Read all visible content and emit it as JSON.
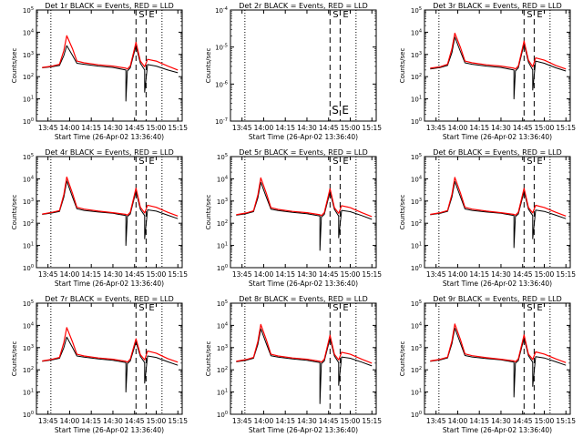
{
  "chart_data": [
    {
      "type": "line",
      "title": "Det 1r BLACK = Events, RED = LLD",
      "ylabel": "Counts/sec",
      "xlabel": "Start Time (26-Apr-02 13:36:40)",
      "x_ticks": [
        "13:45",
        "14:00",
        "14:15",
        "14:30",
        "14:45",
        "15:00",
        "15:15"
      ],
      "y_scale": "log",
      "ylim": [
        1,
        100000
      ],
      "y_ticks": [
        "10^0",
        "10^1",
        "10^2",
        "10^3",
        "10^4",
        "10^5"
      ],
      "markers": {
        "S": "14:46",
        "E": "14:53"
      },
      "series": [
        {
          "color": "#000000",
          "x": [
            "13:41",
            "13:48",
            "13:53",
            "13:56",
            "13:58",
            "14:02",
            "14:05",
            "14:10",
            "14:20",
            "14:30",
            "14:39",
            "14:39",
            "14:40",
            "14:42",
            "14:46",
            "14:49",
            "14:52",
            "14:52",
            "14:54",
            "15:00",
            "15:08",
            "15:15"
          ],
          "y": [
            250,
            280,
            320,
            900,
            2500,
            900,
            400,
            360,
            300,
            260,
            200,
            8,
            180,
            250,
            2500,
            400,
            200,
            20,
            350,
            300,
            200,
            150
          ]
        },
        {
          "color": "#ff0000",
          "x": [
            "13:41",
            "13:48",
            "13:53",
            "13:56",
            "13:58",
            "14:02",
            "14:05",
            "14:10",
            "14:20",
            "14:30",
            "14:39",
            "14:40",
            "14:42",
            "14:46",
            "14:49",
            "14:52",
            "14:54",
            "15:00",
            "15:08",
            "15:15"
          ],
          "y": [
            260,
            300,
            360,
            1500,
            7000,
            1800,
            500,
            420,
            340,
            300,
            240,
            220,
            300,
            3500,
            500,
            280,
            600,
            500,
            300,
            200
          ]
        }
      ]
    },
    {
      "type": "line",
      "title": "Det 2r BLACK = Events, RED = LLD",
      "ylabel": "Counts/sec",
      "xlabel": "Start Time (26-Apr-02 13:36:40)",
      "x_ticks": [
        "13:45",
        "14:00",
        "14:15",
        "14:30",
        "14:45",
        "15:00",
        "15:15"
      ],
      "y_scale": "log",
      "ylim": [
        1e-07,
        0.0001
      ],
      "y_ticks": [
        "10^-7",
        "10^-6",
        "10^-5",
        "10^-4"
      ],
      "markers": {
        "S": "14:46",
        "E": "14:53"
      },
      "series": []
    },
    {
      "type": "line",
      "title": "Det 3r BLACK = Events, RED = LLD",
      "ylabel": "Counts/sec",
      "xlabel": "Start Time (26-Apr-02 13:36:40)",
      "x_ticks": [
        "13:45",
        "14:00",
        "14:15",
        "14:30",
        "14:45",
        "15:00",
        "15:15"
      ],
      "y_scale": "log",
      "ylim": [
        1,
        100000
      ],
      "y_ticks": [
        "10^0",
        "10^1",
        "10^2",
        "10^3",
        "10^4",
        "10^5"
      ],
      "markers": {
        "S": "14:46",
        "E": "14:53"
      },
      "series": [
        {
          "color": "#000000",
          "x": [
            "13:41",
            "13:48",
            "13:53",
            "13:56",
            "13:58",
            "14:02",
            "14:05",
            "14:10",
            "14:20",
            "14:30",
            "14:39",
            "14:39",
            "14:40",
            "14:42",
            "14:46",
            "14:49",
            "14:52",
            "14:52",
            "14:54",
            "15:00",
            "15:08",
            "15:15"
          ],
          "y": [
            220,
            260,
            320,
            1200,
            6000,
            1300,
            420,
            360,
            300,
            260,
            200,
            10,
            180,
            250,
            3000,
            450,
            200,
            25,
            500,
            400,
            250,
            180
          ]
        },
        {
          "color": "#ff0000",
          "x": [
            "13:41",
            "13:48",
            "13:53",
            "13:56",
            "13:58",
            "14:02",
            "14:05",
            "14:10",
            "14:20",
            "14:30",
            "14:39",
            "14:40",
            "14:42",
            "14:46",
            "14:49",
            "14:52",
            "14:54",
            "15:00",
            "15:08",
            "15:15"
          ],
          "y": [
            240,
            280,
            360,
            1800,
            9000,
            2000,
            500,
            420,
            340,
            300,
            240,
            220,
            300,
            4000,
            550,
            280,
            700,
            550,
            320,
            220
          ]
        }
      ]
    },
    {
      "type": "line",
      "title": "Det 4r BLACK = Events, RED = LLD",
      "ylabel": "Counts/sec",
      "xlabel": "Start Time (26-Apr-02 13:36:40)",
      "x_ticks": [
        "13:45",
        "14:00",
        "14:15",
        "14:30",
        "14:45",
        "15:00",
        "15:15"
      ],
      "y_scale": "log",
      "ylim": [
        1,
        100000
      ],
      "y_ticks": [
        "10^0",
        "10^1",
        "10^2",
        "10^3",
        "10^4",
        "10^5"
      ],
      "markers": {
        "S": "14:46",
        "E": "14:53"
      },
      "series": [
        {
          "color": "#000000",
          "x": [
            "13:41",
            "13:48",
            "13:53",
            "13:56",
            "13:58",
            "14:02",
            "14:05",
            "14:10",
            "14:20",
            "14:30",
            "14:39",
            "14:39",
            "14:40",
            "14:42",
            "14:46",
            "14:49",
            "14:52",
            "14:52",
            "14:54",
            "15:00",
            "15:08",
            "15:15"
          ],
          "y": [
            250,
            290,
            340,
            1500,
            8000,
            1500,
            450,
            380,
            320,
            280,
            220,
            10,
            200,
            260,
            2800,
            420,
            220,
            20,
            400,
            350,
            230,
            160
          ]
        },
        {
          "color": "#ff0000",
          "x": [
            "13:41",
            "13:48",
            "13:53",
            "13:56",
            "13:58",
            "14:02",
            "14:05",
            "14:10",
            "14:20",
            "14:30",
            "14:39",
            "14:40",
            "14:42",
            "14:46",
            "14:49",
            "14:52",
            "14:54",
            "15:00",
            "15:08",
            "15:15"
          ],
          "y": [
            260,
            310,
            370,
            2000,
            12000,
            2200,
            520,
            430,
            350,
            300,
            250,
            230,
            310,
            3800,
            520,
            290,
            650,
            520,
            310,
            210
          ]
        }
      ]
    },
    {
      "type": "line",
      "title": "Det 5r BLACK = Events, RED = LLD",
      "ylabel": "Counts/sec",
      "xlabel": "Start Time (26-Apr-02 13:36:40)",
      "x_ticks": [
        "13:45",
        "14:00",
        "14:15",
        "14:30",
        "14:45",
        "15:00",
        "15:15"
      ],
      "y_scale": "log",
      "ylim": [
        1,
        100000
      ],
      "y_ticks": [
        "10^0",
        "10^1",
        "10^2",
        "10^3",
        "10^4",
        "10^5"
      ],
      "markers": {
        "S": "14:46",
        "E": "14:53"
      },
      "series": [
        {
          "color": "#000000",
          "x": [
            "13:41",
            "13:48",
            "13:53",
            "13:56",
            "13:58",
            "14:02",
            "14:05",
            "14:10",
            "14:20",
            "14:30",
            "14:39",
            "14:39",
            "14:40",
            "14:42",
            "14:46",
            "14:49",
            "14:52",
            "14:52",
            "14:54",
            "15:00",
            "15:08",
            "15:15"
          ],
          "y": [
            230,
            270,
            330,
            1400,
            7000,
            1400,
            430,
            370,
            310,
            270,
            210,
            6,
            190,
            250,
            2600,
            420,
            210,
            22,
            380,
            330,
            220,
            150
          ]
        },
        {
          "color": "#ff0000",
          "x": [
            "13:41",
            "13:48",
            "13:53",
            "13:56",
            "13:58",
            "14:02",
            "14:05",
            "14:10",
            "14:20",
            "14:30",
            "14:39",
            "14:40",
            "14:42",
            "14:46",
            "14:49",
            "14:52",
            "14:54",
            "15:00",
            "15:08",
            "15:15"
          ],
          "y": [
            240,
            290,
            360,
            1900,
            11000,
            2100,
            500,
            420,
            340,
            300,
            240,
            220,
            300,
            3600,
            500,
            280,
            620,
            500,
            300,
            200
          ]
        }
      ]
    },
    {
      "type": "line",
      "title": "Det 6r BLACK = Events, RED = LLD",
      "ylabel": "Counts/sec",
      "xlabel": "Start Time (26-Apr-02 13:36:40)",
      "x_ticks": [
        "13:45",
        "14:00",
        "14:15",
        "14:30",
        "14:45",
        "15:00",
        "15:15"
      ],
      "y_scale": "log",
      "ylim": [
        1,
        100000
      ],
      "y_ticks": [
        "10^0",
        "10^1",
        "10^2",
        "10^3",
        "10^4",
        "10^5"
      ],
      "markers": {
        "S": "14:46",
        "E": "14:53"
      },
      "series": [
        {
          "color": "#000000",
          "x": [
            "13:41",
            "13:48",
            "13:53",
            "13:56",
            "13:58",
            "14:02",
            "14:05",
            "14:10",
            "14:20",
            "14:30",
            "14:39",
            "14:39",
            "14:40",
            "14:42",
            "14:46",
            "14:49",
            "14:52",
            "14:52",
            "14:54",
            "15:00",
            "15:08",
            "15:15"
          ],
          "y": [
            240,
            280,
            340,
            1500,
            7500,
            1500,
            440,
            380,
            320,
            280,
            220,
            8,
            200,
            260,
            2700,
            430,
            220,
            20,
            390,
            340,
            230,
            160
          ]
        },
        {
          "color": "#ff0000",
          "x": [
            "13:41",
            "13:48",
            "13:53",
            "13:56",
            "13:58",
            "14:02",
            "14:05",
            "14:10",
            "14:20",
            "14:30",
            "14:39",
            "14:40",
            "14:42",
            "14:46",
            "14:49",
            "14:52",
            "14:54",
            "15:00",
            "15:08",
            "15:15"
          ],
          "y": [
            250,
            300,
            370,
            2000,
            11500,
            2200,
            520,
            430,
            350,
            300,
            250,
            230,
            310,
            3700,
            510,
            290,
            640,
            510,
            310,
            210
          ]
        }
      ]
    },
    {
      "type": "line",
      "title": "Det 7r BLACK = Events, RED = LLD",
      "ylabel": "Counts/sec",
      "xlabel": "Start Time (26-Apr-02 13:36:40)",
      "x_ticks": [
        "13:45",
        "14:00",
        "14:15",
        "14:30",
        "14:45",
        "15:00",
        "15:15"
      ],
      "y_scale": "log",
      "ylim": [
        1,
        100000
      ],
      "y_ticks": [
        "10^0",
        "10^1",
        "10^2",
        "10^3",
        "10^4",
        "10^5"
      ],
      "markers": {
        "S": "14:46",
        "E": "14:53"
      },
      "series": [
        {
          "color": "#000000",
          "x": [
            "13:41",
            "13:48",
            "13:53",
            "13:56",
            "13:58",
            "14:02",
            "14:05",
            "14:10",
            "14:20",
            "14:30",
            "14:39",
            "14:39",
            "14:40",
            "14:42",
            "14:46",
            "14:49",
            "14:52",
            "14:52",
            "14:54",
            "15:00",
            "15:08",
            "15:15"
          ],
          "y": [
            240,
            280,
            330,
            1000,
            3000,
            1000,
            420,
            370,
            310,
            270,
            210,
            10,
            190,
            250,
            1800,
            400,
            210,
            25,
            420,
            360,
            230,
            160
          ]
        },
        {
          "color": "#ff0000",
          "x": [
            "13:41",
            "13:48",
            "13:53",
            "13:56",
            "13:58",
            "14:02",
            "14:05",
            "14:10",
            "14:20",
            "14:30",
            "14:39",
            "14:40",
            "14:42",
            "14:46",
            "14:49",
            "14:52",
            "14:54",
            "15:00",
            "15:08",
            "15:15"
          ],
          "y": [
            250,
            300,
            360,
            1700,
            8000,
            1800,
            500,
            420,
            340,
            300,
            240,
            220,
            300,
            2500,
            480,
            280,
            700,
            560,
            320,
            220
          ]
        }
      ]
    },
    {
      "type": "line",
      "title": "Det 8r BLACK = Events, RED = LLD",
      "ylabel": "Counts/sec",
      "xlabel": "Start Time (26-Apr-02 13:36:40)",
      "x_ticks": [
        "13:45",
        "14:00",
        "14:15",
        "14:30",
        "14:45",
        "15:00",
        "15:15"
      ],
      "y_scale": "log",
      "ylim": [
        1,
        100000
      ],
      "y_ticks": [
        "10^0",
        "10^1",
        "10^2",
        "10^3",
        "10^4",
        "10^5"
      ],
      "markers": {
        "S": "14:46",
        "E": "14:53"
      },
      "series": [
        {
          "color": "#000000",
          "x": [
            "13:41",
            "13:48",
            "13:53",
            "13:56",
            "13:58",
            "14:02",
            "14:05",
            "14:10",
            "14:20",
            "14:30",
            "14:39",
            "14:39",
            "14:40",
            "14:42",
            "14:46",
            "14:49",
            "14:52",
            "14:52",
            "14:54",
            "15:00",
            "15:08",
            "15:15"
          ],
          "y": [
            230,
            270,
            330,
            1400,
            7000,
            1400,
            430,
            370,
            310,
            270,
            210,
            3,
            190,
            250,
            2600,
            420,
            210,
            20,
            380,
            330,
            220,
            150
          ]
        },
        {
          "color": "#ff0000",
          "x": [
            "13:41",
            "13:48",
            "13:53",
            "13:56",
            "13:58",
            "14:02",
            "14:05",
            "14:10",
            "14:20",
            "14:30",
            "14:39",
            "14:40",
            "14:42",
            "14:46",
            "14:49",
            "14:52",
            "14:54",
            "15:00",
            "15:08",
            "15:15"
          ],
          "y": [
            240,
            290,
            360,
            1900,
            11000,
            2100,
            500,
            420,
            340,
            300,
            240,
            220,
            300,
            3600,
            500,
            280,
            620,
            500,
            300,
            200
          ]
        }
      ]
    },
    {
      "type": "line",
      "title": "Det 9r BLACK = Events, RED = LLD",
      "ylabel": "Counts/sec",
      "xlabel": "Start Time (26-Apr-02 13:36:40)",
      "x_ticks": [
        "13:45",
        "14:00",
        "14:15",
        "14:30",
        "14:45",
        "15:00",
        "15:15"
      ],
      "y_scale": "log",
      "ylim": [
        1,
        100000
      ],
      "y_ticks": [
        "10^0",
        "10^1",
        "10^2",
        "10^3",
        "10^4",
        "10^5"
      ],
      "markers": {
        "S": "14:46",
        "E": "14:53"
      },
      "series": [
        {
          "color": "#000000",
          "x": [
            "13:41",
            "13:48",
            "13:53",
            "13:56",
            "13:58",
            "14:02",
            "14:05",
            "14:10",
            "14:20",
            "14:30",
            "14:39",
            "14:39",
            "14:40",
            "14:42",
            "14:46",
            "14:49",
            "14:52",
            "14:52",
            "14:54",
            "15:00",
            "15:08",
            "15:15"
          ],
          "y": [
            240,
            280,
            340,
            1500,
            7500,
            1500,
            440,
            380,
            320,
            280,
            220,
            6,
            200,
            260,
            2700,
            430,
            220,
            18,
            390,
            340,
            230,
            160
          ]
        },
        {
          "color": "#ff0000",
          "x": [
            "13:41",
            "13:48",
            "13:53",
            "13:56",
            "13:58",
            "14:02",
            "14:05",
            "14:10",
            "14:20",
            "14:30",
            "14:39",
            "14:40",
            "14:42",
            "14:46",
            "14:49",
            "14:52",
            "14:54",
            "15:00",
            "15:08",
            "15:15"
          ],
          "y": [
            250,
            300,
            370,
            2000,
            11500,
            2200,
            520,
            430,
            350,
            300,
            250,
            230,
            310,
            3700,
            510,
            290,
            640,
            510,
            310,
            210
          ]
        }
      ]
    }
  ]
}
